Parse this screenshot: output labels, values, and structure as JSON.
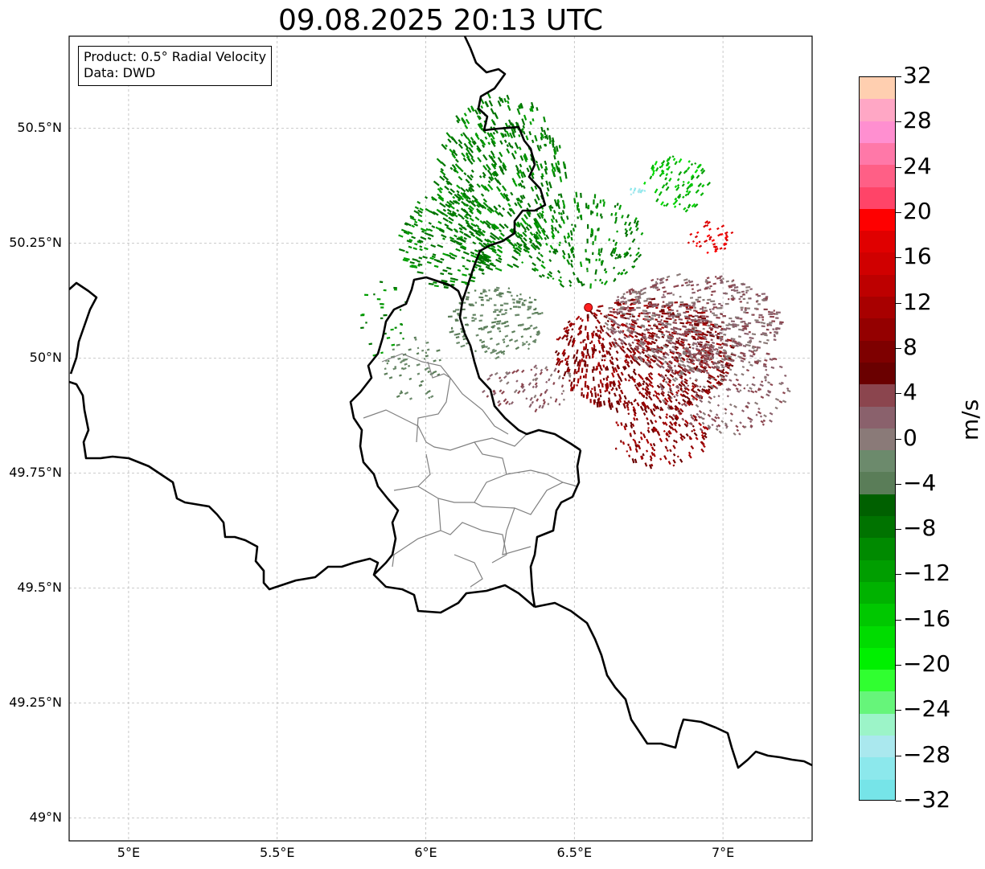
{
  "title": "09.08.2025 20:13 UTC",
  "info": {
    "product_label": "Product: 0.5° Radial Velocity",
    "data_label": "Data: DWD"
  },
  "map": {
    "extent": {
      "lon_min": 4.8,
      "lon_max": 7.3,
      "lat_min": 48.95,
      "lat_max": 50.7
    },
    "lat_ticks": [
      {
        "value": 50.5,
        "label": "50.5°N"
      },
      {
        "value": 50.25,
        "label": "50.25°N"
      },
      {
        "value": 50.0,
        "label": "50°N"
      },
      {
        "value": 49.75,
        "label": "49.75°N"
      },
      {
        "value": 49.5,
        "label": "49.5°N"
      },
      {
        "value": 49.25,
        "label": "49.25°N"
      },
      {
        "value": 49.0,
        "label": "49°N"
      }
    ],
    "lon_ticks": [
      {
        "value": 5.0,
        "label": "5°E"
      },
      {
        "value": 5.5,
        "label": "5.5°E"
      },
      {
        "value": 6.0,
        "label": "6°E"
      },
      {
        "value": 6.5,
        "label": "6.5°E"
      },
      {
        "value": 7.0,
        "label": "7°E"
      }
    ],
    "radar_site": {
      "lon": 6.547,
      "lat": 50.11
    },
    "colors": {
      "border": "#000000",
      "admin": "#808080",
      "grid": "#bbbbbb",
      "site": "#ff0000"
    }
  },
  "colorbar": {
    "unit": "m/s",
    "min": -32,
    "max": 32,
    "tick_labels": [
      "32",
      "28",
      "24",
      "20",
      "16",
      "12",
      "8",
      "4",
      "0",
      "−4",
      "−8",
      "−12",
      "−16",
      "−20",
      "−24",
      "−28",
      "−32"
    ],
    "tick_values": [
      32,
      28,
      24,
      20,
      16,
      12,
      8,
      4,
      0,
      -4,
      -8,
      -12,
      -16,
      -20,
      -24,
      -28,
      -32
    ],
    "bins_top_to_bottom": [
      "#ffcfb0",
      "#ffa7c5",
      "#ff8fd0",
      "#ff78a8",
      "#ff5f86",
      "#ff4468",
      "#fe0000",
      "#e00000",
      "#d00000",
      "#bd0000",
      "#a80000",
      "#940000",
      "#7e0000",
      "#6a0000",
      "#8b454e",
      "#8a616c",
      "#8a7a78",
      "#6c8a6c",
      "#5a7d58",
      "#006000",
      "#007300",
      "#008a00",
      "#009e00",
      "#00b200",
      "#00c800",
      "#00dc00",
      "#00f000",
      "#30ff30",
      "#66f57a",
      "#9cf4c8",
      "#aae8ee",
      "#8ce8ec",
      "#76e4e8"
    ]
  }
}
